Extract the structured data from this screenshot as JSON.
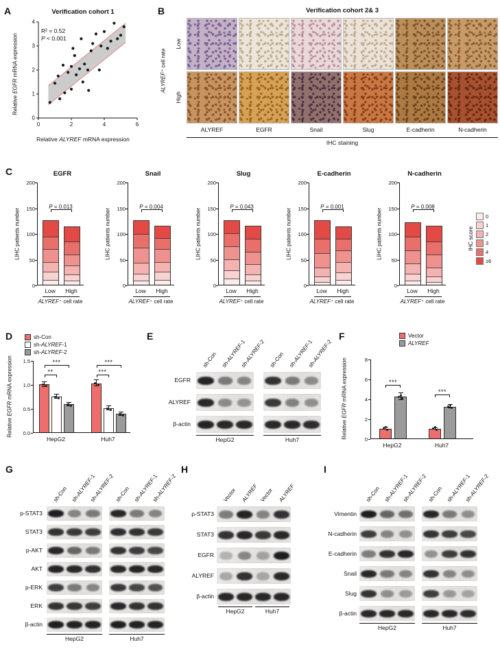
{
  "panelA": {
    "label": "A",
    "title": "Verification cohort 1",
    "stats": {
      "r2": "R² = 0.52",
      "p_parts": [
        "",
        "P",
        " < 0.001"
      ]
    },
    "xlabel_parts": [
      "Relative ",
      "ALYREF",
      " mRNA expression"
    ],
    "ylabel_parts": [
      "Relative ",
      "EGFR",
      " mRNA expression"
    ],
    "chart_data": {
      "type": "scatter",
      "xlim": [
        0,
        6
      ],
      "ylim": [
        0,
        4
      ],
      "xticks": [
        0,
        2,
        4,
        6
      ],
      "yticks": [
        0,
        1,
        2,
        3,
        4
      ],
      "points": [
        [
          0.7,
          0.65
        ],
        [
          1.0,
          1.45
        ],
        [
          1.2,
          1.75
        ],
        [
          1.3,
          0.8
        ],
        [
          1.5,
          2.2
        ],
        [
          1.6,
          1.05
        ],
        [
          1.8,
          1.9
        ],
        [
          2.0,
          2.15
        ],
        [
          2.0,
          1.2
        ],
        [
          2.1,
          2.9
        ],
        [
          2.2,
          2.6
        ],
        [
          2.3,
          1.8
        ],
        [
          2.5,
          2.05
        ],
        [
          2.6,
          3.3
        ],
        [
          2.7,
          1.5
        ],
        [
          2.8,
          2.25
        ],
        [
          3.0,
          2.0
        ],
        [
          3.05,
          1.15
        ],
        [
          3.2,
          2.8
        ],
        [
          3.3,
          3.1
        ],
        [
          3.5,
          3.5
        ],
        [
          3.7,
          2.0
        ],
        [
          3.8,
          3.0
        ],
        [
          4.0,
          3.6
        ],
        [
          4.2,
          2.9
        ],
        [
          4.4,
          3.2
        ],
        [
          4.6,
          3.95
        ],
        [
          4.8,
          3.3
        ],
        [
          5.0,
          3.45
        ],
        [
          5.2,
          3.8
        ]
      ],
      "fit_band": {
        "x0": 0.6,
        "x1": 5.3,
        "y0": 0.95,
        "y1": 3.55,
        "halfwidth": 0.4
      },
      "colors": {
        "band_fill": "#c6c6c6",
        "band_edge": "#e2837e",
        "point": "#1a1a1a"
      }
    }
  },
  "panelB": {
    "label": "B",
    "title": "Verification cohort 2& 3",
    "row_axis_parts": [
      "",
      "ALYREF",
      "⁺ cell rate"
    ],
    "row_labels": [
      "Low",
      "High"
    ],
    "col_labels": [
      "ALYREF",
      "EGFR",
      "Snail",
      "Slug",
      "E-cadherin",
      "N-cadherin"
    ],
    "bottom_label": "IHC staining",
    "tiles": [
      [
        {
          "base": "#c3b1c6",
          "speck": "#7d6397"
        },
        {
          "base": "#ece5d9",
          "speck": "#bfae92"
        },
        {
          "base": "#ead8da",
          "speck": "#bc93a0"
        },
        {
          "base": "#ebe3d9",
          "speck": "#c3ad8f"
        },
        {
          "base": "#bb8e5a",
          "speck": "#7d572b"
        },
        {
          "base": "#c89a69",
          "speck": "#8a5f30"
        }
      ],
      [
        {
          "base": "#c8935f",
          "speck": "#86592c"
        },
        {
          "base": "#d7a255",
          "speck": "#9a6a22"
        },
        {
          "base": "#92706d",
          "speck": "#4e3340"
        },
        {
          "base": "#c97843",
          "speck": "#8a3f18"
        },
        {
          "base": "#ad7a43",
          "speck": "#6e461d"
        },
        {
          "base": "#a65130",
          "speck": "#6b2911"
        }
      ]
    ]
  },
  "panelC": {
    "label": "C",
    "ylabel": "LIHC patients number",
    "xlabel_parts": [
      "",
      "ALYREF",
      "⁺ cell rate"
    ],
    "categories": [
      "Low",
      "High"
    ],
    "legend": {
      "title": "IHC score",
      "labels": [
        "0",
        "1",
        "2",
        "3",
        "4",
        "≥6"
      ],
      "colors": [
        "#fdeceb",
        "#f9d3d1",
        "#f4b3b0",
        "#ef918e",
        "#e96f6b",
        "#e34a45"
      ]
    },
    "chart_data": {
      "type": "bar",
      "stacked": true,
      "ylim": [
        0,
        200
      ],
      "yticks": [
        0,
        50,
        100,
        150,
        200
      ],
      "charts": [
        {
          "title": "EGFR",
          "p_parts": [
            "",
            "P",
            " = 0.013"
          ],
          "series": {
            "Low": [
              10,
              15,
              20,
              25,
              25,
              30
            ],
            "High": [
              8,
              12,
              18,
              22,
              25,
              28
            ]
          }
        },
        {
          "title": "Snail",
          "p_parts": [
            "",
            "P",
            " = 0.004"
          ],
          "series": {
            "Low": [
              8,
              13,
              22,
              30,
              27,
              25
            ],
            "High": [
              10,
              15,
              20,
              25,
              22,
              23
            ]
          }
        },
        {
          "title": "Slug",
          "p_parts": [
            "",
            "P",
            " = 0.043"
          ],
          "series": {
            "Low": [
              12,
              16,
              22,
              26,
              25,
              25
            ],
            "High": [
              8,
              12,
              20,
              25,
              25,
              25
            ]
          }
        },
        {
          "title": "E-cadherin",
          "p_parts": [
            "",
            "P",
            " = 0.001"
          ],
          "series": {
            "Low": [
              6,
              10,
              18,
              28,
              28,
              36
            ],
            "High": [
              10,
              14,
              20,
              24,
              22,
              23
            ]
          }
        },
        {
          "title": "N-cadherin",
          "p_parts": [
            "",
            "P",
            " = 0.008"
          ],
          "series": {
            "Low": [
              8,
              14,
              20,
              25,
              27,
              28
            ],
            "High": [
              6,
              10,
              18,
              25,
              26,
              30
            ]
          }
        }
      ]
    }
  },
  "panelD": {
    "label": "D",
    "legend": [
      {
        "label_parts": [
          "sh-Con"
        ],
        "color": "#ed6e6c"
      },
      {
        "label_parts": [
          "sh-",
          "ALYREF",
          "-1"
        ],
        "color": "#ffffff"
      },
      {
        "label_parts": [
          "sh-",
          "ALYREF",
          "-2"
        ],
        "color": "#9b9b9b"
      }
    ],
    "ylabel_parts": [
      "Relative ",
      "EGFR",
      " mRNA expression"
    ],
    "chart_data": {
      "type": "bar",
      "ylim": [
        0,
        1.5
      ],
      "yticks": [
        "0.0",
        "0.5",
        "1.0",
        "1.5"
      ],
      "groups": [
        {
          "name": "HepG2",
          "values": [
            1.0,
            0.74,
            0.58
          ],
          "errors": [
            0.05,
            0.04,
            0.04
          ],
          "sig": [
            {
              "from": 0,
              "to": 1,
              "stars": "**"
            },
            {
              "from": 0,
              "to": 2,
              "stars": "***"
            }
          ]
        },
        {
          "name": "Huh7",
          "values": [
            1.02,
            0.5,
            0.38
          ],
          "errors": [
            0.06,
            0.04,
            0.03
          ],
          "sig": [
            {
              "from": 0,
              "to": 1,
              "stars": "***"
            },
            {
              "from": 0,
              "to": 2,
              "stars": "***"
            }
          ]
        }
      ]
    }
  },
  "panelE": {
    "label": "E",
    "lane_labels": [
      [
        "sh-Con"
      ],
      [
        "sh-",
        "ALYREF",
        "-1"
      ],
      [
        "sh-",
        "ALYREF",
        "-2"
      ]
    ],
    "groups": [
      "HepG2",
      "Huh7"
    ],
    "rows": [
      {
        "name": "EGFR",
        "bands": [
          [
            0.92,
            0.5,
            0.45
          ],
          [
            0.85,
            0.5,
            0.42
          ]
        ]
      },
      {
        "name": "ALYREF",
        "bands": [
          [
            0.9,
            0.42,
            0.38
          ],
          [
            0.82,
            0.46,
            0.4
          ]
        ]
      },
      {
        "name": "β-actin",
        "bands": [
          [
            0.92,
            0.9,
            0.9
          ],
          [
            0.9,
            0.9,
            0.88
          ]
        ]
      }
    ]
  },
  "panelF": {
    "label": "F",
    "legend": [
      {
        "label_parts": [
          "Vector"
        ],
        "color": "#ed6e6c"
      },
      {
        "label_parts": [
          "",
          "ALYREF"
        ],
        "color": "#9b9b9b"
      }
    ],
    "ylabel_parts": [
      "Relative ",
      "EGFR",
      " mRNA expression"
    ],
    "chart_data": {
      "type": "bar",
      "ylim": [
        0,
        8
      ],
      "yticks": [
        0,
        2,
        4,
        6,
        8
      ],
      "groups": [
        {
          "name": "HepG2",
          "values": [
            1.0,
            4.2
          ],
          "errors": [
            0.08,
            0.35
          ],
          "sig": [
            {
              "from": 0,
              "to": 1,
              "stars": "***"
            }
          ]
        },
        {
          "name": "Huh7",
          "values": [
            1.0,
            3.2
          ],
          "errors": [
            0.07,
            0.15
          ],
          "sig": [
            {
              "from": 0,
              "to": 1,
              "stars": "***"
            }
          ]
        }
      ]
    }
  },
  "panelG": {
    "label": "G",
    "lane_labels": [
      [
        "sh-Con"
      ],
      [
        "sh-",
        "ALYREF",
        "-1"
      ],
      [
        "sh-",
        "ALYREF",
        "-2"
      ]
    ],
    "groups": [
      "HepG2",
      "Huh7"
    ],
    "rows": [
      {
        "name": "p-STAT3",
        "bands": [
          [
            0.95,
            0.45,
            0.5
          ],
          [
            0.9,
            0.5,
            0.45
          ]
        ]
      },
      {
        "name": "STAT3",
        "bands": [
          [
            0.85,
            0.82,
            0.8
          ],
          [
            0.88,
            0.85,
            0.82
          ]
        ]
      },
      {
        "name": "p-AKT",
        "bands": [
          [
            0.9,
            0.6,
            0.5
          ],
          [
            0.85,
            0.8,
            0.75
          ]
        ]
      },
      {
        "name": "AKT",
        "bands": [
          [
            0.92,
            0.9,
            0.86
          ],
          [
            0.9,
            0.92,
            0.9
          ]
        ]
      },
      {
        "name": "p-ERK",
        "bands": [
          [
            0.8,
            0.5,
            0.45
          ],
          [
            0.82,
            0.75,
            0.7
          ]
        ]
      },
      {
        "name": "ERK",
        "bands": [
          [
            0.85,
            0.83,
            0.8
          ],
          [
            0.9,
            0.85,
            0.85
          ]
        ]
      },
      {
        "name": "β-actin",
        "bands": [
          [
            0.95,
            0.93,
            0.93
          ],
          [
            0.94,
            0.93,
            0.92
          ]
        ]
      }
    ]
  },
  "panelH": {
    "label": "H",
    "lane_labels": [
      [
        "Vector"
      ],
      [
        "",
        "ALYREF"
      ],
      [
        "Vector"
      ],
      [
        "",
        "ALYREF"
      ]
    ],
    "groups": [
      "HepG2",
      "Huh7"
    ],
    "rows": [
      {
        "name": "p-STAT3",
        "bands": [
          [
            0.5,
            0.92,
            0.45,
            0.85
          ]
        ]
      },
      {
        "name": "STAT3",
        "bands": [
          [
            0.85,
            0.9,
            0.82,
            0.9
          ]
        ]
      },
      {
        "name": "EGFR",
        "bands": [
          [
            0.25,
            0.45,
            0.3,
            0.95
          ]
        ]
      },
      {
        "name": "ALYREF",
        "bands": [
          [
            0.3,
            0.85,
            0.28,
            0.9
          ]
        ]
      },
      {
        "name": "β-actin",
        "bands": [
          [
            0.9,
            0.9,
            0.9,
            0.9
          ]
        ]
      }
    ]
  },
  "panelI": {
    "label": "I",
    "lane_labels": [
      [
        "sh-Con"
      ],
      [
        "sh-",
        "ALYREF",
        "-1"
      ],
      [
        "sh-",
        "ALYREF",
        "-2"
      ]
    ],
    "groups": [
      "HepG2",
      "Huh7"
    ],
    "rows": [
      {
        "name": "Vimentin",
        "bands": [
          [
            0.95,
            0.6,
            0.55
          ],
          [
            0.9,
            0.5,
            0.4
          ]
        ]
      },
      {
        "name": "N-cadherin",
        "bands": [
          [
            0.8,
            0.45,
            0.4
          ],
          [
            0.85,
            0.8,
            0.75
          ]
        ]
      },
      {
        "name": "E-cadherin",
        "bands": [
          [
            0.5,
            0.85,
            0.9
          ],
          [
            0.4,
            0.8,
            0.85
          ]
        ]
      },
      {
        "name": "Snail",
        "bands": [
          [
            0.9,
            0.5,
            0.45
          ],
          [
            0.85,
            0.45,
            0.4
          ]
        ]
      },
      {
        "name": "Slug",
        "bands": [
          [
            0.85,
            0.4,
            0.35
          ],
          [
            0.8,
            0.35,
            0.3
          ]
        ]
      },
      {
        "name": "β-actin",
        "bands": [
          [
            0.9,
            0.9,
            0.9
          ],
          [
            0.9,
            0.9,
            0.88
          ]
        ]
      }
    ]
  }
}
